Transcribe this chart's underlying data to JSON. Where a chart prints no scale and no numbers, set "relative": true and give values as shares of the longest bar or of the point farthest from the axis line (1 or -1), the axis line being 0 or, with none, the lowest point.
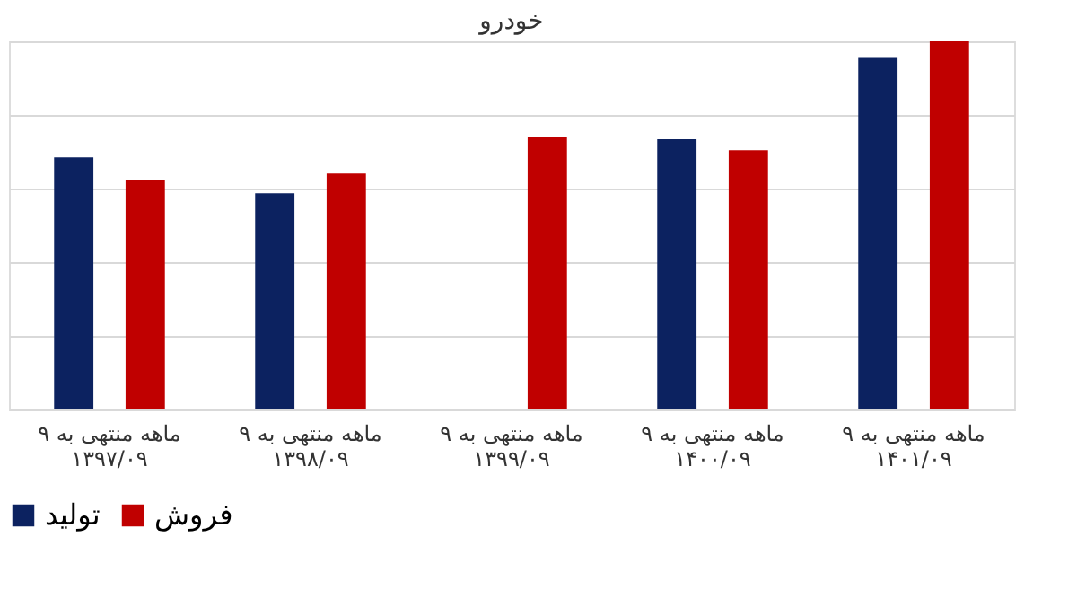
{
  "chart_data": {
    "type": "bar",
    "title": "خودرو",
    "relative": true,
    "grid": "y",
    "legend": "bottom",
    "categories": [
      "۹ ماهه منتهی به\n۱۳۹۷/۰۹",
      "۹ ماهه منتهی به\n۱۳۹۸/۰۹",
      "۹ ماهه منتهی به\n۱۳۹۹/۰۹",
      "۹ ماهه منتهی به\n۱۴۰۰/۰۹",
      "۹ ماهه منتهی به\n۱۴۰۱/۰۹"
    ],
    "series": [
      {
        "name": "تولید",
        "color": "#0c2260",
        "values": [
          0.685,
          0.587,
          null,
          0.734,
          0.955
        ]
      },
      {
        "name": "فروش",
        "color": "#c00000",
        "values": [
          0.622,
          0.641,
          0.739,
          0.704,
          1
        ]
      }
    ]
  }
}
